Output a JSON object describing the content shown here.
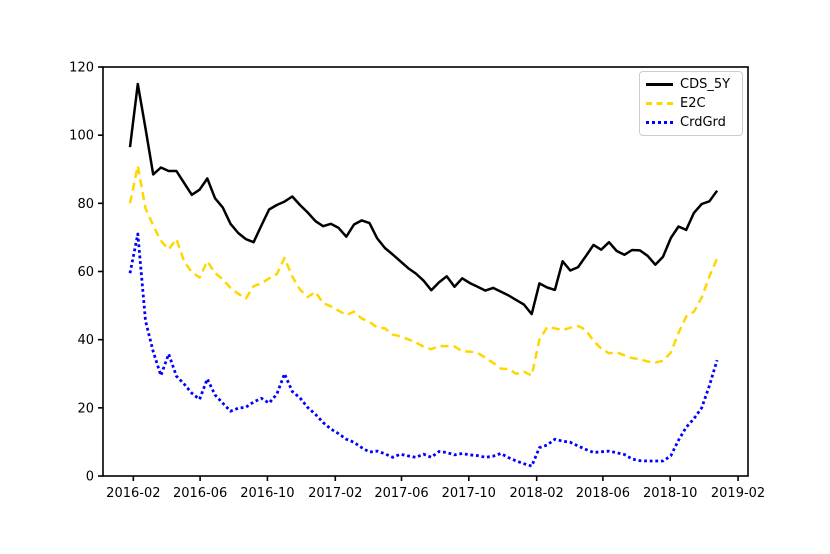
{
  "figure": {
    "background": "#ffffff",
    "spine_color": "#000000",
    "tick_label_color": "#000000"
  },
  "chart_data": {
    "type": "line",
    "title": "",
    "xlabel": "",
    "ylabel": "",
    "grid": false,
    "legend_position": "upper right",
    "ylim": [
      0,
      120
    ],
    "xlim": [
      "2015-12-08",
      "2019-02-19"
    ],
    "y_ticks": [
      0,
      20,
      40,
      60,
      80,
      100,
      120
    ],
    "x_ticks": [
      {
        "date": "2016-02-01",
        "label": "2016-02"
      },
      {
        "date": "2016-06-01",
        "label": "2016-06"
      },
      {
        "date": "2016-10-01",
        "label": "2016-10"
      },
      {
        "date": "2017-02-01",
        "label": "2017-02"
      },
      {
        "date": "2017-06-01",
        "label": "2017-06"
      },
      {
        "date": "2017-10-01",
        "label": "2017-10"
      },
      {
        "date": "2018-02-01",
        "label": "2018-02"
      },
      {
        "date": "2018-06-01",
        "label": "2018-06"
      },
      {
        "date": "2018-10-01",
        "label": "2018-10"
      },
      {
        "date": "2019-02-01",
        "label": "2019-02"
      }
    ],
    "dates": [
      "2016-01-26",
      "2016-02-09",
      "2016-02-23",
      "2016-03-08",
      "2016-03-22",
      "2016-04-05",
      "2016-04-19",
      "2016-05-03",
      "2016-05-17",
      "2016-05-31",
      "2016-06-14",
      "2016-06-28",
      "2016-07-12",
      "2016-07-26",
      "2016-08-09",
      "2016-08-23",
      "2016-09-06",
      "2016-09-20",
      "2016-10-04",
      "2016-10-18",
      "2016-11-01",
      "2016-11-15",
      "2016-11-29",
      "2016-12-13",
      "2016-12-27",
      "2017-01-10",
      "2017-01-24",
      "2017-02-07",
      "2017-02-21",
      "2017-03-07",
      "2017-03-21",
      "2017-04-04",
      "2017-04-18",
      "2017-05-02",
      "2017-05-16",
      "2017-05-30",
      "2017-06-13",
      "2017-06-27",
      "2017-07-11",
      "2017-07-25",
      "2017-08-08",
      "2017-08-22",
      "2017-09-05",
      "2017-09-19",
      "2017-10-03",
      "2017-10-17",
      "2017-10-31",
      "2017-11-14",
      "2017-11-28",
      "2017-12-12",
      "2017-12-26",
      "2018-01-09",
      "2018-01-23",
      "2018-02-06",
      "2018-02-20",
      "2018-03-06",
      "2018-03-20",
      "2018-04-03",
      "2018-04-17",
      "2018-05-01",
      "2018-05-15",
      "2018-05-29",
      "2018-06-12",
      "2018-06-26",
      "2018-07-10",
      "2018-07-24",
      "2018-08-07",
      "2018-08-21",
      "2018-09-04",
      "2018-09-18",
      "2018-10-02",
      "2018-10-16",
      "2018-10-30",
      "2018-11-13",
      "2018-11-27",
      "2018-12-11",
      "2018-12-25"
    ],
    "series": [
      {
        "name": "CDS_5Y",
        "color": "#000000",
        "style": "solid",
        "line_width": 2.5,
        "values": [
          96.5,
          115,
          102,
          88.5,
          90.5,
          89.5,
          89.5,
          86,
          82.5,
          84,
          87.3,
          81.5,
          78.8,
          74,
          71.3,
          69.5,
          68.6,
          73.5,
          78.2,
          79.5,
          80.5,
          82,
          79.5,
          77.3,
          74.8,
          73.3,
          74,
          72.8,
          70.2,
          73.8,
          75,
          74.2,
          69.7,
          66.9,
          65,
          63,
          61,
          59.4,
          57.3,
          54.5,
          56.8,
          58.6,
          55.5,
          58,
          56.6,
          55.5,
          54.4,
          55.2,
          54.1,
          53,
          51.6,
          50.3,
          47.5,
          56.5,
          55.3,
          54.6,
          63,
          60.3,
          61.3,
          64.5,
          67.8,
          66.4,
          68.6,
          66,
          64.9,
          66.3,
          66.2,
          64.6,
          62,
          64.3,
          69.8,
          73.2,
          72.2,
          77.2,
          79.8,
          80.6,
          83.7
        ]
      },
      {
        "name": "E2C",
        "color": "#FFD700",
        "style": "dashed",
        "line_width": 2.5,
        "values": [
          80,
          91,
          78.5,
          73.5,
          69,
          66.5,
          69.5,
          63,
          59.8,
          58.2,
          63,
          59.6,
          57.7,
          55.2,
          53.5,
          52.1,
          55.7,
          56.5,
          58,
          59.2,
          64,
          58.5,
          54.7,
          52.5,
          54,
          50.7,
          49.8,
          48.5,
          47.2,
          48.2,
          46.2,
          45.2,
          43.6,
          43.3,
          41.5,
          41,
          40.1,
          39.2,
          37.9,
          37.2,
          38.1,
          38.1,
          38,
          36.6,
          36.5,
          36.1,
          34.7,
          33.2,
          31.5,
          31.4,
          30,
          30.6,
          29.5,
          40,
          43.7,
          43.3,
          42.8,
          43.5,
          44,
          42.9,
          39.6,
          37.4,
          36,
          36.3,
          35.4,
          34.6,
          34.3,
          33.6,
          33.3,
          33.8,
          36.2,
          42,
          46.8,
          48.2,
          52.3,
          58.6,
          63.8
        ]
      },
      {
        "name": "CrdGrd",
        "color": "#0000FF",
        "style": "dotted",
        "line_width": 2.8,
        "values": [
          59.5,
          71,
          45.5,
          36.5,
          29.5,
          35.8,
          29.3,
          27,
          24.3,
          22.5,
          28.5,
          23.8,
          21.4,
          19,
          19.9,
          20.2,
          21.7,
          22.8,
          21.4,
          24,
          30,
          24.8,
          22.9,
          20.1,
          18.1,
          15.7,
          13.8,
          12.4,
          10.8,
          9.9,
          8.3,
          7,
          7.3,
          6.5,
          5.5,
          6.4,
          5.9,
          5.5,
          6.4,
          5.5,
          7.2,
          6.9,
          6.2,
          6.6,
          6.2,
          6,
          5.5,
          5.8,
          6.6,
          5.4,
          4.4,
          3.6,
          2.9,
          8.3,
          9.1,
          10.8,
          10.2,
          9.9,
          8.8,
          7.8,
          6.9,
          7.1,
          7.3,
          6.8,
          6.3,
          5,
          4.5,
          4.4,
          4.4,
          4.4,
          5.9,
          10.5,
          14.3,
          16.8,
          20,
          26.5,
          34
        ]
      }
    ]
  }
}
